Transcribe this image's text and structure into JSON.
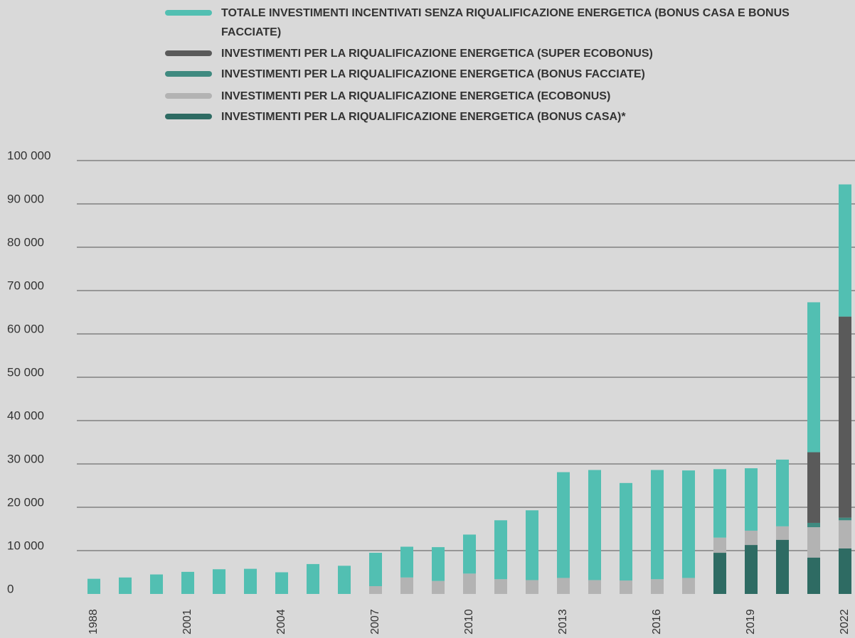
{
  "chart_data": {
    "type": "bar",
    "stacked": true,
    "categories": [
      "1988",
      null,
      null,
      "2001",
      null,
      null,
      "2004",
      null,
      null,
      "2007",
      null,
      null,
      "2010",
      null,
      null,
      "2013",
      null,
      null,
      "2016",
      null,
      null,
      "2019",
      null,
      null,
      "2022"
    ],
    "series": [
      {
        "name": "TOTALE INVESTIMENTI INCENTIVATI SENZA RIQUALIFICAZIONE ENERGETICA (BONUS CASA E BONUS FACCIATE)",
        "color": "#52bfb2",
        "values": [
          3500,
          3800,
          4500,
          5100,
          5700,
          5800,
          5000,
          6900,
          6500,
          7700,
          7100,
          7800,
          9000,
          13600,
          16100,
          24400,
          25400,
          22500,
          25200,
          24800,
          15800,
          14400,
          15400,
          34600,
          30500
        ]
      },
      {
        "name": "INVESTIMENTI PER LA RIQUALIFICAZIONE ENERGETICA (SUPER ECOBONUS)",
        "color": "#5a5a5a",
        "values": [
          null,
          null,
          null,
          null,
          null,
          null,
          null,
          null,
          null,
          null,
          null,
          null,
          null,
          null,
          null,
          null,
          null,
          null,
          null,
          null,
          null,
          null,
          null,
          16300,
          46400
        ]
      },
      {
        "name": "INVESTIMENTI PER LA RIQUALIFICAZIONE ENERGETICA (BONUS FACCIATE)",
        "color": "#3f8a80",
        "values": [
          null,
          null,
          null,
          null,
          null,
          null,
          null,
          null,
          null,
          null,
          null,
          null,
          null,
          null,
          null,
          null,
          null,
          null,
          null,
          null,
          null,
          null,
          null,
          1000,
          600
        ]
      },
      {
        "name": "INVESTIMENTI PER LA RIQUALIFICAZIONE ENERGETICA (ECOBONUS)",
        "color": "#b3b3b3",
        "values": [
          null,
          null,
          null,
          null,
          null,
          null,
          null,
          null,
          null,
          1800,
          3800,
          3000,
          4700,
          3400,
          3200,
          3700,
          3200,
          3100,
          3400,
          3700,
          3500,
          3300,
          3100,
          7000,
          6500
        ]
      },
      {
        "name": "INVESTIMENTI PER LA RIQUALIFICAZIONE ENERGETICA (BONUS CASA)*",
        "color": "#2e6b63",
        "values": [
          null,
          null,
          null,
          null,
          null,
          null,
          null,
          null,
          null,
          null,
          null,
          null,
          null,
          null,
          null,
          null,
          null,
          null,
          null,
          null,
          9500,
          11300,
          12500,
          8400,
          10500
        ]
      }
    ],
    "ylim": [
      0,
      100000
    ],
    "yticks": [
      0,
      {
        "value": 10000,
        "label": "10 000"
      },
      {
        "value": 20000,
        "label": "20 000"
      },
      {
        "value": 30000,
        "label": "30 000"
      },
      {
        "value": 40000,
        "label": "40 000"
      },
      {
        "value": 50000,
        "label": "50 000"
      },
      {
        "value": 60000,
        "label": "60 000"
      },
      {
        "value": 70000,
        "label": "70 000"
      },
      {
        "value": 80000,
        "label": "80 000"
      },
      {
        "value": 90000,
        "label": "90 000"
      },
      {
        "value": 100000,
        "label": "100 000"
      }
    ],
    "grid": true,
    "legend": "top"
  }
}
